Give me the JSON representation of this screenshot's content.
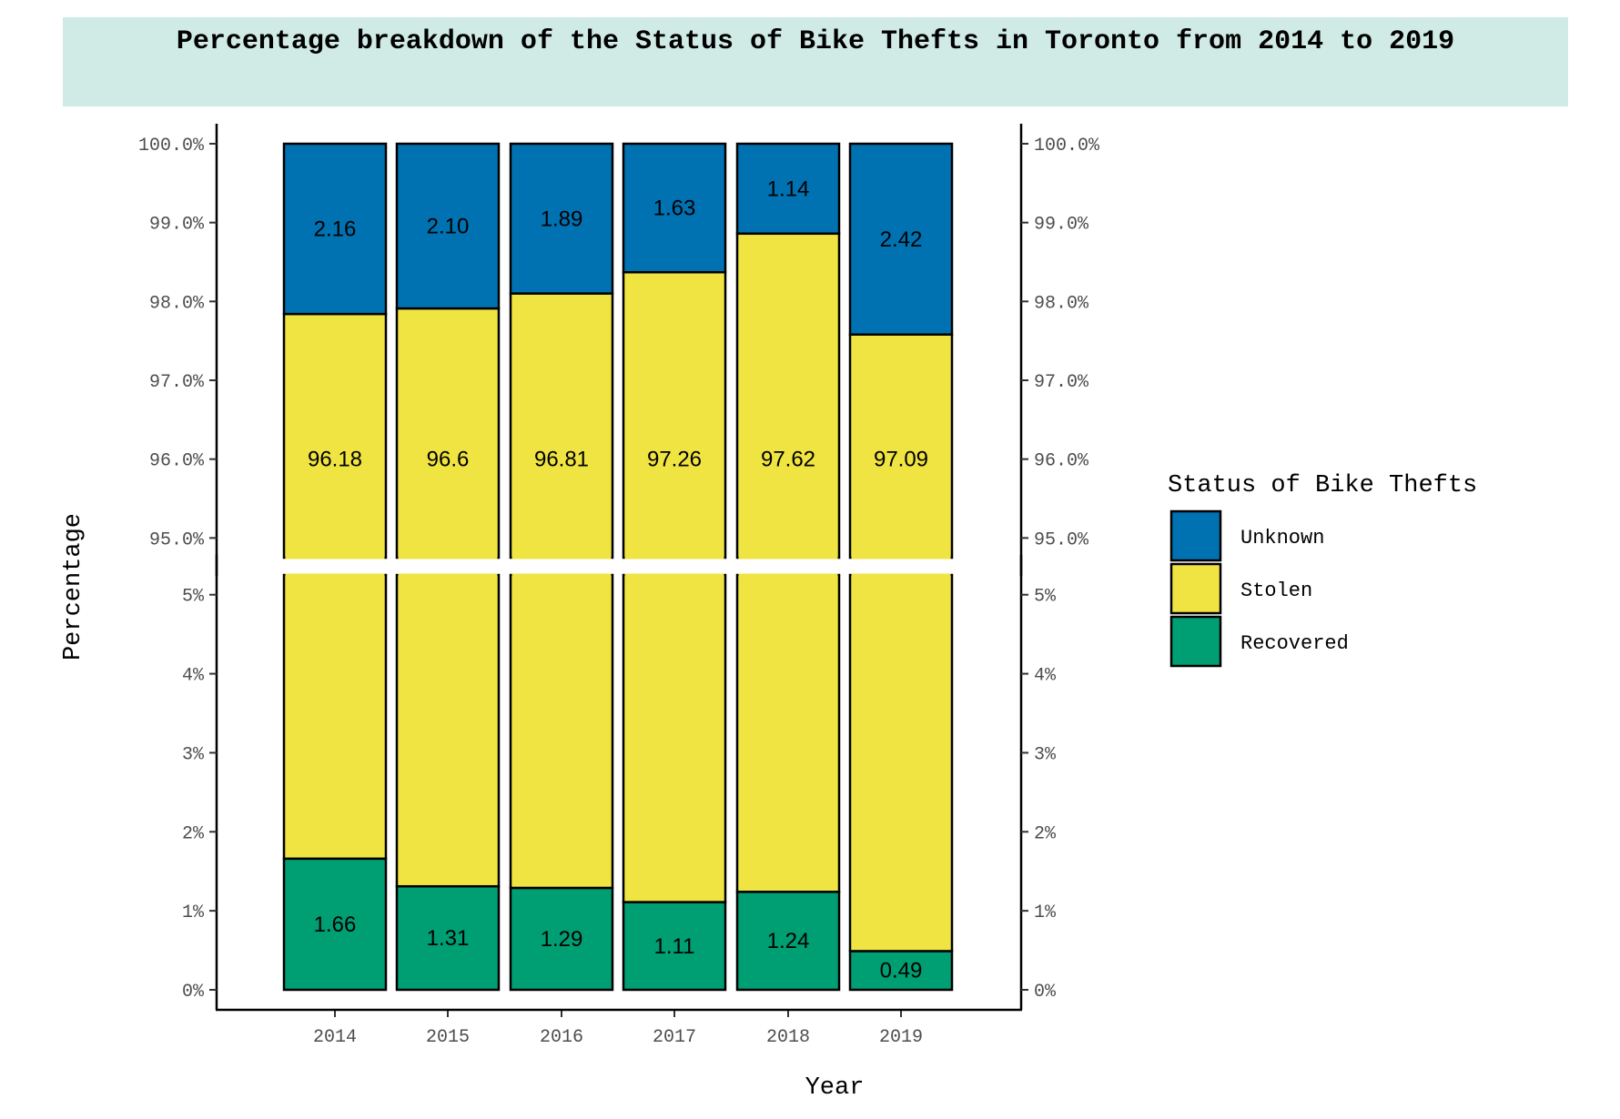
{
  "chart_data": {
    "type": "bar",
    "stacked": true,
    "title": "Percentage breakdown of the Status of Bike Thefts in Toronto from 2014 to 2019",
    "xlabel": "Year",
    "ylabel": "Percentage",
    "categories": [
      "2014",
      "2015",
      "2016",
      "2017",
      "2018",
      "2019"
    ],
    "series": [
      {
        "name": "Recovered",
        "color": "#009e73",
        "values": [
          1.66,
          1.31,
          1.29,
          1.11,
          1.24,
          0.49
        ],
        "labels": [
          "1.66",
          "1.31",
          "1.29",
          "1.11",
          "1.24",
          "0.49"
        ]
      },
      {
        "name": "Stolen",
        "color": "#f0e442",
        "values": [
          96.18,
          96.6,
          96.81,
          97.26,
          97.62,
          97.09
        ],
        "labels": [
          "96.18",
          "96.6",
          "96.81",
          "97.26",
          "97.62",
          "97.09"
        ]
      },
      {
        "name": "Unknown",
        "color": "#0072b2",
        "values": [
          2.16,
          2.1,
          1.89,
          1.63,
          1.14,
          2.42
        ],
        "labels": [
          "2.16",
          "2.10",
          "1.89",
          "1.63",
          "1.14",
          "2.42"
        ]
      }
    ],
    "axis_break": true,
    "upper_panel": {
      "ylim": [
        94.75,
        100
      ],
      "ticks": [
        95,
        96,
        97,
        98,
        99,
        100
      ],
      "tick_labels": [
        "95.0%",
        "96.0%",
        "97.0%",
        "98.0%",
        "99.0%",
        "100.0%"
      ]
    },
    "lower_panel": {
      "ylim": [
        0,
        5.25
      ],
      "ticks": [
        0,
        1,
        2,
        3,
        4,
        5
      ],
      "tick_labels": [
        "0%",
        "1%",
        "2%",
        "3%",
        "4%",
        "5%"
      ]
    },
    "secondary_y_axis": true,
    "legend": {
      "title": "Status of Bike Thefts",
      "position": "right",
      "order": [
        "Unknown",
        "Stolen",
        "Recovered"
      ]
    },
    "grid": false
  }
}
